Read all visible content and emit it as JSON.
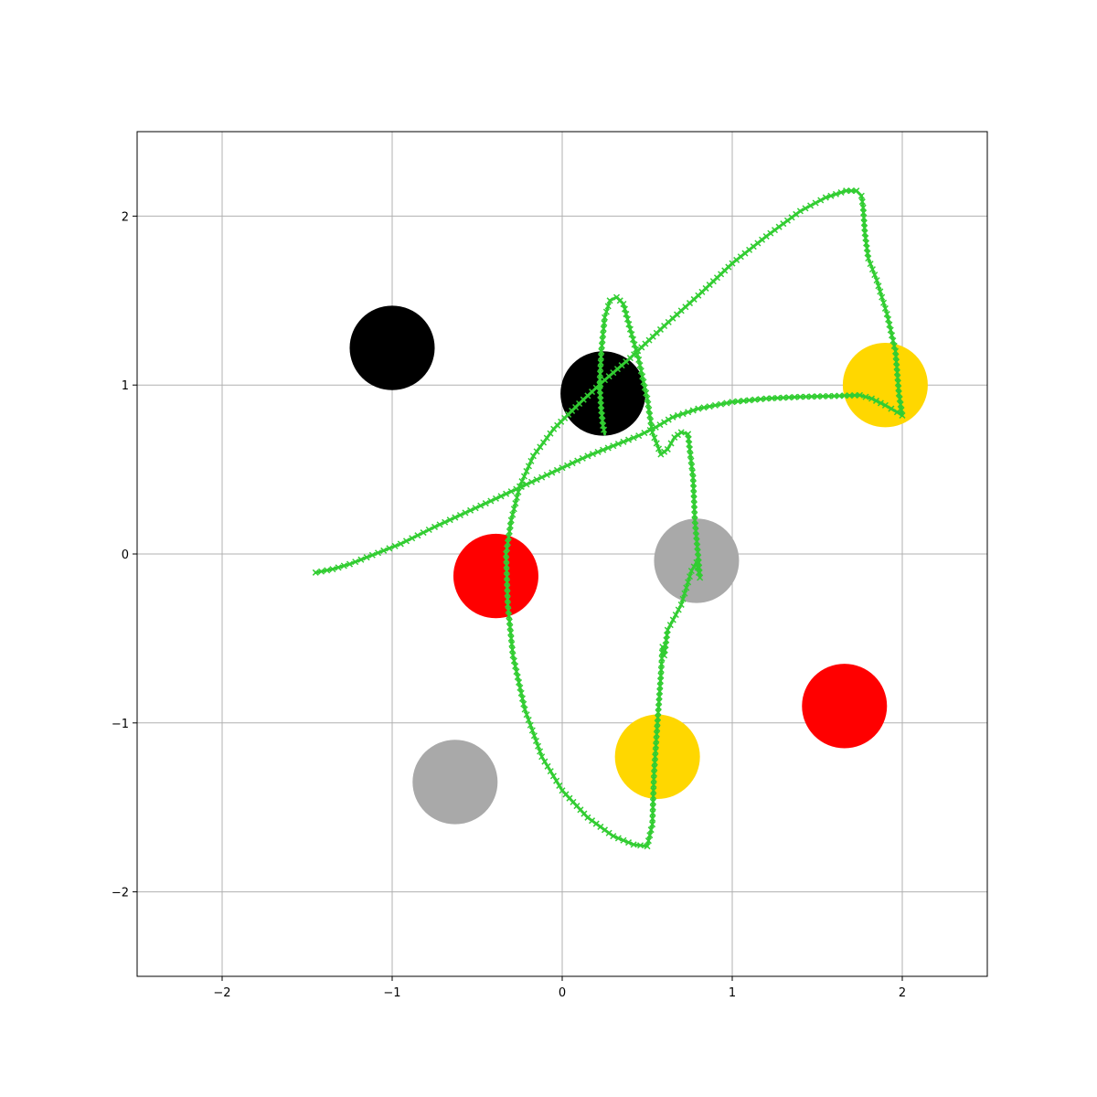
{
  "chart_data": {
    "type": "scatter",
    "title": "",
    "xlabel": "",
    "ylabel": "",
    "xlim": [
      -2.5,
      2.5
    ],
    "ylim": [
      -2.5,
      2.5
    ],
    "grid": true,
    "xticks": [
      {
        "value": -2,
        "label": "−2"
      },
      {
        "value": -1,
        "label": "−1"
      },
      {
        "value": 0,
        "label": "0"
      },
      {
        "value": 1,
        "label": "1"
      },
      {
        "value": 2,
        "label": "2"
      }
    ],
    "yticks": [
      {
        "value": -2,
        "label": "−2"
      },
      {
        "value": -1,
        "label": "−1"
      },
      {
        "value": 0,
        "label": "0"
      },
      {
        "value": 1,
        "label": "1"
      },
      {
        "value": 2,
        "label": "2"
      }
    ],
    "circles": [
      {
        "x": -1.0,
        "y": 1.22,
        "r": 0.25,
        "color": "#000000"
      },
      {
        "x": 0.24,
        "y": 0.95,
        "r": 0.25,
        "color": "#000000"
      },
      {
        "x": 1.9,
        "y": 1.0,
        "r": 0.25,
        "color": "#ffd700"
      },
      {
        "x": -0.39,
        "y": -0.13,
        "r": 0.25,
        "color": "#ff0000"
      },
      {
        "x": 0.79,
        "y": -0.04,
        "r": 0.25,
        "color": "#a9a9a9"
      },
      {
        "x": -0.63,
        "y": -1.35,
        "r": 0.25,
        "color": "#a9a9a9"
      },
      {
        "x": 0.56,
        "y": -1.2,
        "r": 0.25,
        "color": "#ffd700"
      },
      {
        "x": 1.66,
        "y": -0.9,
        "r": 0.25,
        "color": "#ff0000"
      }
    ],
    "trajectory": {
      "color": "#32cd32",
      "marker": "x",
      "points": [
        [
          -1.45,
          -0.11
        ],
        [
          -1.35,
          -0.09
        ],
        [
          -1.25,
          -0.06
        ],
        [
          -1.15,
          -0.02
        ],
        [
          -1.05,
          0.02
        ],
        [
          -0.95,
          0.06
        ],
        [
          -0.85,
          0.11
        ],
        [
          -0.75,
          0.16
        ],
        [
          -0.6,
          0.23
        ],
        [
          -0.45,
          0.3
        ],
        [
          -0.3,
          0.37
        ],
        [
          -0.15,
          0.44
        ],
        [
          0.0,
          0.51
        ],
        [
          0.15,
          0.58
        ],
        [
          0.3,
          0.64
        ],
        [
          0.45,
          0.7
        ],
        [
          0.55,
          0.75
        ],
        [
          0.65,
          0.81
        ],
        [
          0.8,
          0.86
        ],
        [
          1.0,
          0.9
        ],
        [
          1.2,
          0.92
        ],
        [
          1.4,
          0.93
        ],
        [
          1.6,
          0.935
        ],
        [
          1.75,
          0.94
        ],
        [
          1.82,
          0.92
        ],
        [
          1.9,
          0.88
        ],
        [
          1.97,
          0.84
        ],
        [
          2.0,
          0.82
        ],
        [
          1.98,
          0.95
        ],
        [
          1.96,
          1.2
        ],
        [
          1.91,
          1.42
        ],
        [
          1.85,
          1.62
        ],
        [
          1.8,
          1.75
        ],
        [
          1.78,
          1.9
        ],
        [
          1.77,
          2.05
        ],
        [
          1.76,
          2.12
        ],
        [
          1.73,
          2.15
        ],
        [
          1.67,
          2.15
        ],
        [
          1.55,
          2.11
        ],
        [
          1.4,
          2.03
        ],
        [
          1.2,
          1.88
        ],
        [
          1.0,
          1.72
        ],
        [
          0.8,
          1.53
        ],
        [
          0.6,
          1.35
        ],
        [
          0.4,
          1.16
        ],
        [
          0.25,
          1.03
        ],
        [
          0.1,
          0.89
        ],
        [
          -0.05,
          0.74
        ],
        [
          -0.17,
          0.58
        ],
        [
          -0.25,
          0.4
        ],
        [
          -0.3,
          0.2
        ],
        [
          -0.33,
          0.0
        ],
        [
          -0.32,
          -0.3
        ],
        [
          -0.29,
          -0.6
        ],
        [
          -0.22,
          -0.92
        ],
        [
          -0.12,
          -1.2
        ],
        [
          0.0,
          -1.4
        ],
        [
          0.15,
          -1.56
        ],
        [
          0.3,
          -1.67
        ],
        [
          0.42,
          -1.72
        ],
        [
          0.5,
          -1.73
        ],
        [
          0.53,
          -1.6
        ],
        [
          0.54,
          -1.3
        ],
        [
          0.56,
          -1.0
        ],
        [
          0.58,
          -0.72
        ],
        [
          0.59,
          -0.55
        ],
        [
          0.6,
          -0.6
        ],
        [
          0.62,
          -0.45
        ],
        [
          0.7,
          -0.3
        ],
        [
          0.76,
          -0.1
        ],
        [
          0.79,
          -0.05
        ],
        [
          0.81,
          -0.14
        ],
        [
          0.8,
          -0.02
        ],
        [
          0.78,
          0.2
        ],
        [
          0.77,
          0.45
        ],
        [
          0.75,
          0.62
        ],
        [
          0.74,
          0.71
        ],
        [
          0.7,
          0.72
        ],
        [
          0.66,
          0.69
        ],
        [
          0.62,
          0.62
        ],
        [
          0.58,
          0.59
        ],
        [
          0.53,
          0.72
        ],
        [
          0.5,
          0.92
        ],
        [
          0.45,
          1.15
        ],
        [
          0.4,
          1.33
        ],
        [
          0.36,
          1.48
        ],
        [
          0.32,
          1.52
        ],
        [
          0.28,
          1.5
        ],
        [
          0.25,
          1.4
        ],
        [
          0.23,
          1.2
        ],
        [
          0.22,
          1.0
        ],
        [
          0.23,
          0.85
        ],
        [
          0.24,
          0.76
        ],
        [
          0.25,
          0.71
        ]
      ]
    }
  }
}
